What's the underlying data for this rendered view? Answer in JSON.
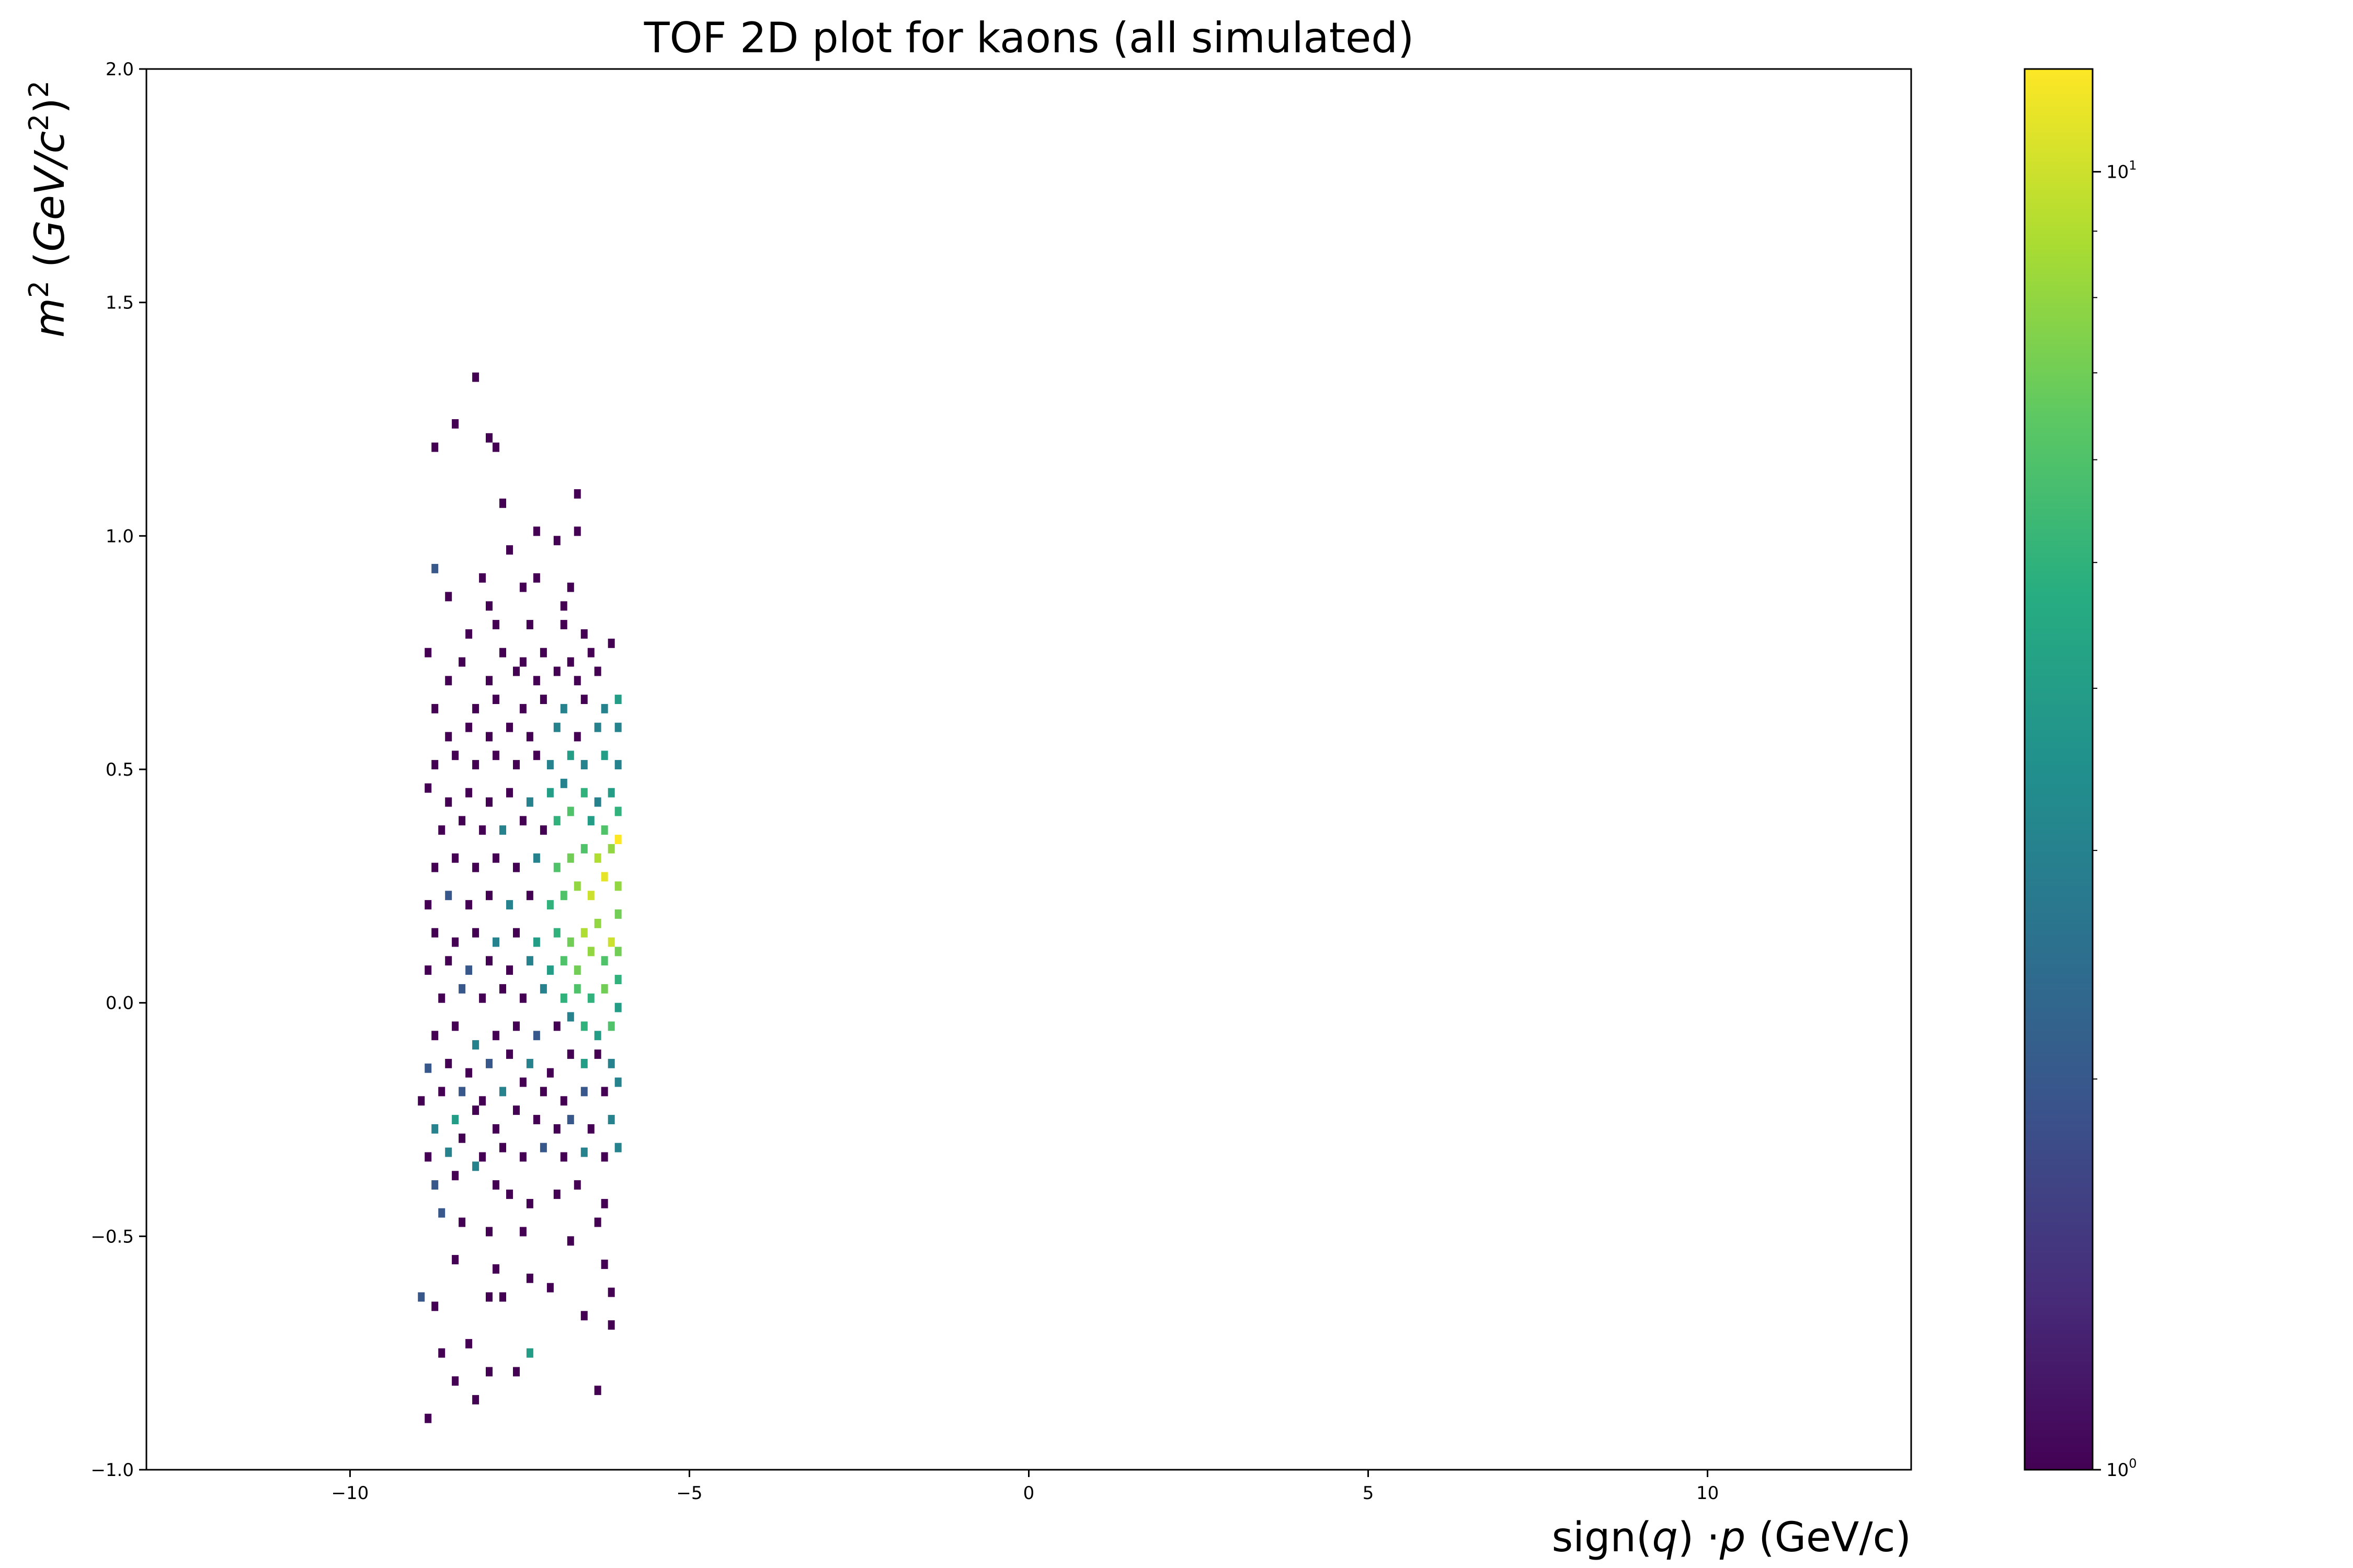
{
  "chart_data": {
    "type": "heatmap",
    "title": "TOF 2D plot for kaons (all simulated)",
    "xlabel": "sign(q) ·p (GeV/c)",
    "xlabel_parts": [
      {
        "text": "sign(",
        "italic": false
      },
      {
        "text": "q",
        "italic": true
      },
      {
        "text": ") ·",
        "italic": false
      },
      {
        "text": "p",
        "italic": true
      },
      {
        "text": " (GeV/c)",
        "italic": false
      }
    ],
    "ylabel": "m² (GeV/c²)²",
    "xlim": [
      -13,
      13
    ],
    "ylim": [
      -1.0,
      2.0
    ],
    "xticks": [
      -10,
      -5,
      0,
      5,
      10
    ],
    "xtick_labels": [
      "−10",
      "−5",
      "0",
      "5",
      "10"
    ],
    "yticks": [
      -1.0,
      -0.5,
      0.0,
      0.5,
      1.0,
      1.5,
      2.0
    ],
    "ytick_labels": [
      "−1.0",
      "−0.5",
      "0.0",
      "0.5",
      "1.0",
      "1.5",
      "2.0"
    ],
    "colormap": "viridis",
    "color_scale": "log",
    "colorbar_range": [
      1,
      12
    ],
    "colorbar_ticks": [
      {
        "value": 1,
        "base": "10",
        "exp": "0"
      },
      {
        "value": 10,
        "base": "10",
        "exp": "1"
      }
    ],
    "colorbar_minor_ticks": [
      2,
      3,
      4,
      5,
      6,
      7,
      8,
      9
    ],
    "grid": false,
    "bin_width": [
      0.1,
      0.02
    ],
    "bins": [
      [
        -8.9,
        -0.9,
        1
      ],
      [
        -8.2,
        -0.86,
        1
      ],
      [
        -8.5,
        -0.82,
        1
      ],
      [
        -8.0,
        -0.8,
        1
      ],
      [
        -7.6,
        -0.8,
        1
      ],
      [
        -6.4,
        -0.84,
        1
      ],
      [
        -8.7,
        -0.76,
        1
      ],
      [
        -8.3,
        -0.74,
        1
      ],
      [
        -7.4,
        -0.76,
        4
      ],
      [
        -6.6,
        -0.68,
        1
      ],
      [
        -6.2,
        -0.7,
        1
      ],
      [
        -9.0,
        -0.64,
        2
      ],
      [
        -8.8,
        -0.66,
        1
      ],
      [
        -8.0,
        -0.64,
        1
      ],
      [
        -7.8,
        -0.64,
        1
      ],
      [
        -7.1,
        -0.62,
        1
      ],
      [
        -6.2,
        -0.63,
        1
      ],
      [
        -8.5,
        -0.56,
        1
      ],
      [
        -7.9,
        -0.58,
        1
      ],
      [
        -7.4,
        -0.6,
        1
      ],
      [
        -6.3,
        -0.57,
        1
      ],
      [
        -8.7,
        -0.46,
        2
      ],
      [
        -8.4,
        -0.48,
        1
      ],
      [
        -8.0,
        -0.5,
        1
      ],
      [
        -7.5,
        -0.5,
        1
      ],
      [
        -6.8,
        -0.52,
        1
      ],
      [
        -6.4,
        -0.48,
        1
      ],
      [
        -8.8,
        -0.4,
        2
      ],
      [
        -8.5,
        -0.38,
        1
      ],
      [
        -8.2,
        -0.36,
        3
      ],
      [
        -7.9,
        -0.4,
        1
      ],
      [
        -7.7,
        -0.42,
        1
      ],
      [
        -7.4,
        -0.44,
        1
      ],
      [
        -7.0,
        -0.42,
        1
      ],
      [
        -6.7,
        -0.4,
        1
      ],
      [
        -6.3,
        -0.44,
        1
      ],
      [
        -8.9,
        -0.34,
        1
      ],
      [
        -8.6,
        -0.33,
        3
      ],
      [
        -8.4,
        -0.3,
        1
      ],
      [
        -8.1,
        -0.34,
        1
      ],
      [
        -7.8,
        -0.32,
        1
      ],
      [
        -7.5,
        -0.34,
        1
      ],
      [
        -7.2,
        -0.32,
        2
      ],
      [
        -6.9,
        -0.34,
        1
      ],
      [
        -6.6,
        -0.33,
        3
      ],
      [
        -6.3,
        -0.34,
        1
      ],
      [
        -6.1,
        -0.32,
        3
      ],
      [
        -8.8,
        -0.28,
        3
      ],
      [
        -8.5,
        -0.26,
        4
      ],
      [
        -8.2,
        -0.24,
        1
      ],
      [
        -7.9,
        -0.28,
        1
      ],
      [
        -7.6,
        -0.24,
        1
      ],
      [
        -7.3,
        -0.26,
        1
      ],
      [
        -7.0,
        -0.28,
        1
      ],
      [
        -6.8,
        -0.26,
        2
      ],
      [
        -6.5,
        -0.28,
        1
      ],
      [
        -6.2,
        -0.26,
        3
      ],
      [
        -9.0,
        -0.22,
        1
      ],
      [
        -8.7,
        -0.2,
        1
      ],
      [
        -8.4,
        -0.2,
        2
      ],
      [
        -8.1,
        -0.22,
        1
      ],
      [
        -7.8,
        -0.2,
        3
      ],
      [
        -7.5,
        -0.18,
        1
      ],
      [
        -7.2,
        -0.2,
        1
      ],
      [
        -6.9,
        -0.22,
        1
      ],
      [
        -6.6,
        -0.2,
        2
      ],
      [
        -6.3,
        -0.2,
        1
      ],
      [
        -6.1,
        -0.18,
        3
      ],
      [
        -8.9,
        -0.15,
        2
      ],
      [
        -8.6,
        -0.14,
        1
      ],
      [
        -8.3,
        -0.16,
        1
      ],
      [
        -8.0,
        -0.14,
        2
      ],
      [
        -7.7,
        -0.12,
        1
      ],
      [
        -7.4,
        -0.14,
        3
      ],
      [
        -7.1,
        -0.16,
        1
      ],
      [
        -6.8,
        -0.12,
        1
      ],
      [
        -6.6,
        -0.14,
        4
      ],
      [
        -6.4,
        -0.12,
        1
      ],
      [
        -6.2,
        -0.14,
        3
      ],
      [
        -8.8,
        -0.08,
        1
      ],
      [
        -8.5,
        -0.06,
        1
      ],
      [
        -8.2,
        -0.1,
        3
      ],
      [
        -7.9,
        -0.08,
        1
      ],
      [
        -7.6,
        -0.06,
        1
      ],
      [
        -7.3,
        -0.08,
        2
      ],
      [
        -7.0,
        -0.06,
        1
      ],
      [
        -6.8,
        -0.04,
        3
      ],
      [
        -6.6,
        -0.06,
        5
      ],
      [
        -6.4,
        -0.08,
        4
      ],
      [
        -6.2,
        -0.06,
        6
      ],
      [
        -6.1,
        -0.02,
        4
      ],
      [
        -8.7,
        0.0,
        1
      ],
      [
        -8.4,
        0.02,
        2
      ],
      [
        -8.1,
        0.0,
        1
      ],
      [
        -7.8,
        0.02,
        1
      ],
      [
        -7.5,
        0.0,
        1
      ],
      [
        -7.2,
        0.02,
        3
      ],
      [
        -6.9,
        0.0,
        5
      ],
      [
        -6.7,
        0.02,
        6
      ],
      [
        -6.5,
        0.0,
        5
      ],
      [
        -6.3,
        0.02,
        7
      ],
      [
        -6.1,
        0.04,
        5
      ],
      [
        -8.9,
        0.06,
        1
      ],
      [
        -8.6,
        0.08,
        1
      ],
      [
        -8.3,
        0.06,
        2
      ],
      [
        -8.0,
        0.08,
        1
      ],
      [
        -7.7,
        0.06,
        1
      ],
      [
        -7.4,
        0.08,
        3
      ],
      [
        -7.1,
        0.06,
        4
      ],
      [
        -6.9,
        0.08,
        6
      ],
      [
        -6.7,
        0.06,
        7
      ],
      [
        -6.5,
        0.1,
        8
      ],
      [
        -6.3,
        0.08,
        6
      ],
      [
        -6.1,
        0.1,
        7
      ],
      [
        -8.8,
        0.14,
        1
      ],
      [
        -8.5,
        0.12,
        1
      ],
      [
        -8.2,
        0.14,
        1
      ],
      [
        -7.9,
        0.12,
        3
      ],
      [
        -7.6,
        0.14,
        1
      ],
      [
        -7.3,
        0.12,
        4
      ],
      [
        -7.0,
        0.14,
        5
      ],
      [
        -6.8,
        0.12,
        7
      ],
      [
        -6.6,
        0.14,
        9
      ],
      [
        -6.4,
        0.16,
        8
      ],
      [
        -6.2,
        0.12,
        10
      ],
      [
        -6.1,
        0.18,
        7
      ],
      [
        -8.9,
        0.2,
        1
      ],
      [
        -8.6,
        0.22,
        2
      ],
      [
        -8.3,
        0.2,
        1
      ],
      [
        -8.0,
        0.22,
        1
      ],
      [
        -7.7,
        0.2,
        3
      ],
      [
        -7.4,
        0.22,
        1
      ],
      [
        -7.1,
        0.2,
        5
      ],
      [
        -6.9,
        0.22,
        6
      ],
      [
        -6.7,
        0.24,
        8
      ],
      [
        -6.5,
        0.22,
        10
      ],
      [
        -6.3,
        0.26,
        11
      ],
      [
        -6.1,
        0.24,
        8
      ],
      [
        -8.8,
        0.28,
        1
      ],
      [
        -8.5,
        0.3,
        1
      ],
      [
        -8.2,
        0.28,
        1
      ],
      [
        -7.9,
        0.3,
        1
      ],
      [
        -7.6,
        0.28,
        1
      ],
      [
        -7.3,
        0.3,
        3
      ],
      [
        -7.0,
        0.28,
        6
      ],
      [
        -6.8,
        0.3,
        7
      ],
      [
        -6.6,
        0.32,
        6
      ],
      [
        -6.4,
        0.3,
        9
      ],
      [
        -6.2,
        0.32,
        8
      ],
      [
        -6.1,
        0.34,
        12
      ],
      [
        -8.7,
        0.36,
        1
      ],
      [
        -8.4,
        0.38,
        1
      ],
      [
        -8.1,
        0.36,
        1
      ],
      [
        -7.8,
        0.36,
        3
      ],
      [
        -7.5,
        0.38,
        1
      ],
      [
        -7.2,
        0.36,
        1
      ],
      [
        -7.0,
        0.38,
        5
      ],
      [
        -6.8,
        0.4,
        6
      ],
      [
        -6.5,
        0.38,
        4
      ],
      [
        -6.3,
        0.36,
        6
      ],
      [
        -6.1,
        0.4,
        5
      ],
      [
        -8.9,
        0.45,
        1
      ],
      [
        -8.6,
        0.42,
        1
      ],
      [
        -8.3,
        0.44,
        1
      ],
      [
        -8.0,
        0.42,
        1
      ],
      [
        -7.7,
        0.44,
        1
      ],
      [
        -7.4,
        0.42,
        3
      ],
      [
        -7.1,
        0.44,
        4
      ],
      [
        -6.9,
        0.46,
        3
      ],
      [
        -6.6,
        0.44,
        5
      ],
      [
        -6.4,
        0.42,
        3
      ],
      [
        -6.2,
        0.44,
        4
      ],
      [
        -8.8,
        0.5,
        1
      ],
      [
        -8.5,
        0.52,
        1
      ],
      [
        -8.2,
        0.5,
        1
      ],
      [
        -7.9,
        0.52,
        1
      ],
      [
        -7.6,
        0.5,
        1
      ],
      [
        -7.3,
        0.52,
        1
      ],
      [
        -7.1,
        0.5,
        3
      ],
      [
        -6.8,
        0.52,
        4
      ],
      [
        -6.6,
        0.5,
        3
      ],
      [
        -6.3,
        0.52,
        4
      ],
      [
        -6.1,
        0.5,
        3
      ],
      [
        -8.6,
        0.56,
        1
      ],
      [
        -8.3,
        0.58,
        1
      ],
      [
        -8.0,
        0.56,
        1
      ],
      [
        -7.7,
        0.58,
        1
      ],
      [
        -7.4,
        0.56,
        1
      ],
      [
        -7.0,
        0.58,
        3
      ],
      [
        -6.7,
        0.56,
        1
      ],
      [
        -6.4,
        0.58,
        3
      ],
      [
        -6.1,
        0.58,
        3
      ],
      [
        -8.8,
        0.62,
        1
      ],
      [
        -8.2,
        0.62,
        1
      ],
      [
        -7.9,
        0.64,
        1
      ],
      [
        -7.5,
        0.62,
        1
      ],
      [
        -7.2,
        0.64,
        1
      ],
      [
        -6.9,
        0.62,
        3
      ],
      [
        -6.6,
        0.64,
        1
      ],
      [
        -6.3,
        0.62,
        3
      ],
      [
        -6.1,
        0.64,
        4
      ],
      [
        -8.6,
        0.68,
        1
      ],
      [
        -8.0,
        0.68,
        1
      ],
      [
        -7.6,
        0.7,
        1
      ],
      [
        -7.3,
        0.68,
        1
      ],
      [
        -7.0,
        0.7,
        1
      ],
      [
        -6.7,
        0.68,
        1
      ],
      [
        -6.4,
        0.7,
        1
      ],
      [
        -8.9,
        0.74,
        1
      ],
      [
        -8.4,
        0.72,
        1
      ],
      [
        -7.8,
        0.74,
        1
      ],
      [
        -7.5,
        0.72,
        1
      ],
      [
        -7.2,
        0.74,
        1
      ],
      [
        -6.8,
        0.72,
        1
      ],
      [
        -6.5,
        0.74,
        1
      ],
      [
        -6.2,
        0.76,
        1
      ],
      [
        -8.3,
        0.78,
        1
      ],
      [
        -7.9,
        0.8,
        1
      ],
      [
        -7.4,
        0.8,
        1
      ],
      [
        -6.9,
        0.8,
        1
      ],
      [
        -6.6,
        0.78,
        1
      ],
      [
        -8.6,
        0.86,
        1
      ],
      [
        -8.0,
        0.84,
        1
      ],
      [
        -7.5,
        0.88,
        1
      ],
      [
        -6.9,
        0.84,
        1
      ],
      [
        -8.8,
        0.92,
        2
      ],
      [
        -8.1,
        0.9,
        1
      ],
      [
        -7.3,
        0.9,
        1
      ],
      [
        -6.8,
        0.88,
        1
      ],
      [
        -7.7,
        0.96,
        1
      ],
      [
        -7.0,
        0.98,
        1
      ],
      [
        -7.3,
        1.0,
        1
      ],
      [
        -6.7,
        1.0,
        1
      ],
      [
        -7.8,
        1.06,
        1
      ],
      [
        -6.7,
        1.08,
        1
      ],
      [
        -8.8,
        1.18,
        1
      ],
      [
        -8.0,
        1.2,
        1
      ],
      [
        -7.9,
        1.18,
        1
      ],
      [
        -8.5,
        1.23,
        1
      ],
      [
        -8.2,
        1.33,
        1
      ]
    ]
  }
}
